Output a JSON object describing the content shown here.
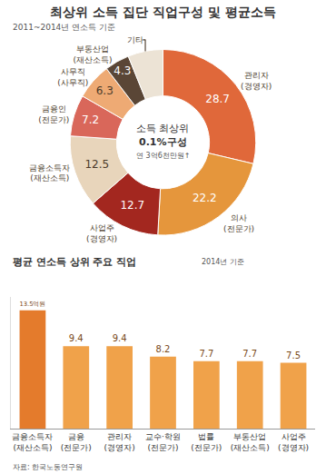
{
  "source": "자료: 한국노동연구원",
  "chart_data": [
    {
      "type": "pie",
      "title": "최상위 소득 집단 직업구성 및 평균소득",
      "subtitle": "2011~2014년 연소득 기준",
      "center_text": [
        "소득 최상위",
        "0.1%구성",
        "연 3억6천만원↑"
      ],
      "categories": [
        "관리자",
        "의사",
        "사업주",
        "금융소득자",
        "금융인",
        "사무직",
        "부동산업",
        "기타"
      ],
      "category_notes": [
        "(경영자)",
        "(전문가)",
        "(경영자)",
        "(재산소득)",
        "(전문가)",
        "(사무직)",
        "(재산소득)",
        null
      ],
      "values": [
        28.7,
        22.2,
        12.7,
        12.5,
        7.2,
        6.3,
        4.3,
        6.1
      ],
      "value_labels": [
        "28.7",
        "22.2",
        "12.7",
        "12.5",
        "7.2",
        "6.3",
        "4.3",
        null
      ],
      "colors": [
        "#e0683a",
        "#e5963c",
        "#a3271f",
        "#e8d5bb",
        "#d9675a",
        "#eeaa74",
        "#5a4636",
        "#ece3d5"
      ],
      "data_labels": true
    },
    {
      "type": "bar",
      "title": "평균 연소득 상위 주요 직업",
      "subtitle": "2014년 기준",
      "categories": [
        "금융소득자",
        "금융",
        "관리자",
        "교수·학원",
        "법률",
        "부동산업",
        "사업주"
      ],
      "category_notes": [
        "(재산소득)",
        "(전문가)",
        "(경영자)",
        "(전문가)",
        "(전문가)",
        "(재산소득)",
        "(경영자)"
      ],
      "values": [
        13.5,
        9.4,
        9.4,
        8.2,
        7.7,
        7.7,
        7.5
      ],
      "value_labels": [
        "13.5억원",
        "9.4",
        "9.4",
        "8.2",
        "7.7",
        "7.7",
        "7.5"
      ],
      "colors": [
        "#e47b2c",
        "#f0a24a",
        "#f0a24a",
        "#f0a24a",
        "#f0a24a",
        "#f0a24a",
        "#f0a24a"
      ],
      "ylim": [
        0,
        15
      ],
      "data_labels": true,
      "tick_labels": "x",
      "grid": false
    }
  ]
}
